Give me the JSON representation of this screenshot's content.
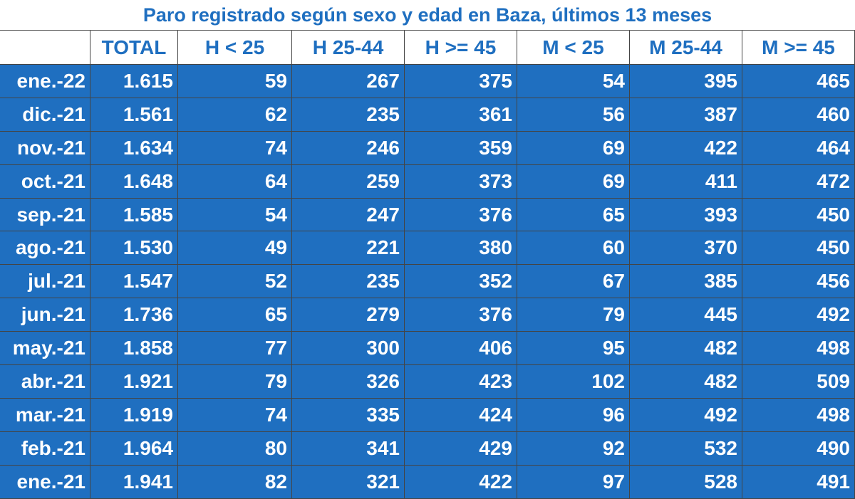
{
  "title": "Paro registrado según sexo y edad en Baza, últimos 13 meses",
  "table": {
    "headers": [
      "TOTAL",
      "H < 25",
      "H 25-44",
      "H >= 45",
      "M < 25",
      "M 25-44",
      "M >= 45"
    ],
    "rows": [
      [
        "ene.-22",
        "1.615",
        "59",
        "267",
        "375",
        "54",
        "395",
        "465"
      ],
      [
        "dic.-21",
        "1.561",
        "62",
        "235",
        "361",
        "56",
        "387",
        "460"
      ],
      [
        "nov.-21",
        "1.634",
        "74",
        "246",
        "359",
        "69",
        "422",
        "464"
      ],
      [
        "oct.-21",
        "1.648",
        "64",
        "259",
        "373",
        "69",
        "411",
        "472"
      ],
      [
        "sep.-21",
        "1.585",
        "54",
        "247",
        "376",
        "65",
        "393",
        "450"
      ],
      [
        "ago.-21",
        "1.530",
        "49",
        "221",
        "380",
        "60",
        "370",
        "450"
      ],
      [
        "jul.-21",
        "1.547",
        "52",
        "235",
        "352",
        "67",
        "385",
        "456"
      ],
      [
        "jun.-21",
        "1.736",
        "65",
        "279",
        "376",
        "79",
        "445",
        "492"
      ],
      [
        "may.-21",
        "1.858",
        "77",
        "300",
        "406",
        "95",
        "482",
        "498"
      ],
      [
        "abr.-21",
        "1.921",
        "79",
        "326",
        "423",
        "102",
        "482",
        "509"
      ],
      [
        "mar.-21",
        "1.919",
        "74",
        "335",
        "424",
        "96",
        "492",
        "498"
      ],
      [
        "feb.-21",
        "1.964",
        "80",
        "341",
        "429",
        "92",
        "532",
        "490"
      ],
      [
        "ene.-21",
        "1.941",
        "82",
        "321",
        "422",
        "97",
        "528",
        "491"
      ]
    ]
  }
}
